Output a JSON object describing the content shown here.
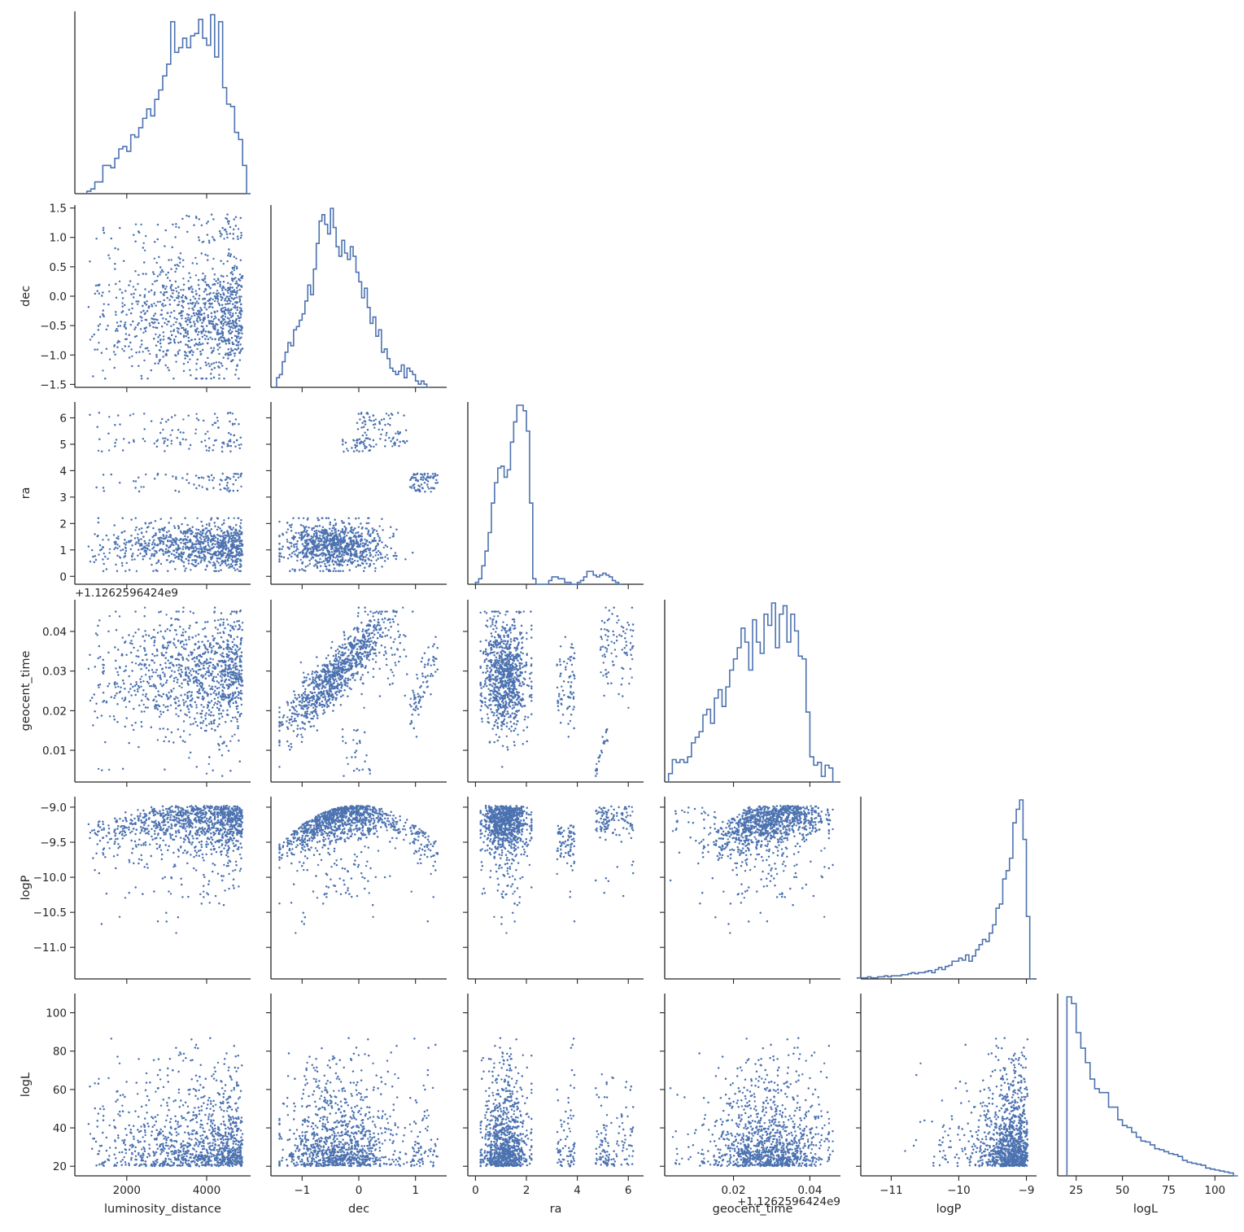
{
  "chart_data": {
    "type": "scatter",
    "title": "",
    "layout": "corner-pairplot",
    "color": "#4c72b0",
    "grid": false,
    "legend": "none",
    "variables": [
      {
        "key": "luminosity_distance",
        "label": "luminosity_distance",
        "ylabel": "",
        "lim": [
          700,
          5100
        ],
        "ticks": [
          2000,
          4000
        ],
        "tick_labels": [
          "2000",
          "4000"
        ],
        "offset": ""
      },
      {
        "key": "dec",
        "label": "dec",
        "ylabel": "dec",
        "lim": [
          -1.55,
          1.55
        ],
        "ticks": [
          -1.5,
          -1.0,
          -0.5,
          0.0,
          0.5,
          1.0,
          1.5
        ],
        "tick_labels": [
          "−1.5",
          "−1.0",
          "−0.5",
          "0.0",
          "0.5",
          "1.0",
          "1.5"
        ],
        "xticks": [
          -1,
          0,
          1
        ],
        "xtick_labels": [
          "−1",
          "0",
          "1"
        ],
        "offset": ""
      },
      {
        "key": "ra",
        "label": "ra",
        "ylabel": "ra",
        "lim": [
          -0.3,
          6.6
        ],
        "ticks": [
          0,
          1,
          2,
          3,
          4,
          5,
          6
        ],
        "tick_labels": [
          "0",
          "1",
          "2",
          "3",
          "4",
          "5",
          "6"
        ],
        "xticks": [
          0,
          2,
          4,
          6
        ],
        "xtick_labels": [
          "0",
          "2",
          "4",
          "6"
        ],
        "offset": ""
      },
      {
        "key": "geocent_time",
        "label": "geocent_time",
        "ylabel": "geocent_time",
        "lim": [
          0.002,
          0.048
        ],
        "ticks": [
          0.01,
          0.02,
          0.03,
          0.04
        ],
        "tick_labels": [
          "0.01",
          "0.02",
          "0.03",
          "0.04"
        ],
        "xticks": [
          0.02,
          0.04
        ],
        "xtick_labels": [
          "0.02",
          "0.04"
        ],
        "offset": "+1.1262596424e9"
      },
      {
        "key": "logP",
        "label": "logP",
        "ylabel": "logP",
        "lim": [
          -11.45,
          -8.85
        ],
        "ticks": [
          -11.0,
          -10.5,
          -10.0,
          -9.5,
          -9.0
        ],
        "tick_labels": [
          "−11.0",
          "−10.5",
          "−10.0",
          "−9.5",
          "−9.0"
        ],
        "xticks": [
          -11,
          -10,
          -9
        ],
        "xtick_labels": [
          "−11",
          "−10",
          "−9"
        ],
        "offset": ""
      },
      {
        "key": "logL",
        "label": "logL",
        "ylabel": "logL",
        "lim": [
          15,
          110
        ],
        "ticks": [
          20,
          40,
          60,
          80,
          100
        ],
        "tick_labels": [
          "20",
          "40",
          "60",
          "80",
          "100"
        ],
        "xticks": [
          25,
          50,
          75,
          100
        ],
        "xtick_labels": [
          "25",
          "50",
          "75",
          "100"
        ],
        "offset": ""
      }
    ],
    "diagonal_histograms": [
      {
        "var": "luminosity_distance",
        "edges_start": 1000,
        "bin_width": 100,
        "counts": [
          1,
          2,
          5,
          5,
          12,
          12,
          11,
          15,
          19,
          20,
          18,
          25,
          24,
          28,
          32,
          36,
          33,
          40,
          44,
          50,
          55,
          73,
          60,
          62,
          66,
          62,
          67,
          68,
          74,
          66,
          63,
          76,
          58,
          73,
          45,
          38,
          37,
          26,
          23,
          12,
          0
        ]
      },
      {
        "var": "dec",
        "edges_start": -1.45,
        "bin_width": 0.05,
        "counts": [
          3,
          4,
          8,
          11,
          14,
          13,
          18,
          19,
          21,
          23,
          27,
          32,
          29,
          37,
          45,
          52,
          54,
          51,
          48,
          56,
          50,
          44,
          41,
          46,
          42,
          40,
          44,
          41,
          36,
          33,
          28,
          31,
          25,
          20,
          22,
          16,
          18,
          11,
          12,
          9,
          6,
          5,
          4,
          5,
          7,
          3,
          6,
          5,
          4,
          2,
          1,
          2,
          1,
          0
        ]
      },
      {
        "var": "ra",
        "edges_start": 0.0,
        "bin_width": 0.125,
        "counts": [
          1,
          3,
          10,
          18,
          28,
          44,
          55,
          63,
          64,
          58,
          62,
          77,
          88,
          97,
          97,
          94,
          83,
          44,
          3,
          0,
          0,
          0,
          0,
          2,
          4,
          4,
          3,
          3,
          1,
          1,
          0,
          0,
          1,
          2,
          4,
          7,
          7,
          5,
          4,
          5,
          6,
          5,
          4,
          2,
          1,
          0
        ]
      },
      {
        "var": "geocent_time",
        "edges_start": 0.003,
        "bin_width": 0.001,
        "counts": [
          3,
          8,
          7,
          8,
          7,
          9,
          14,
          16,
          18,
          24,
          26,
          21,
          30,
          33,
          27,
          34,
          40,
          44,
          48,
          55,
          50,
          40,
          58,
          50,
          46,
          60,
          56,
          64,
          48,
          60,
          63,
          50,
          60,
          54,
          45,
          44,
          25,
          9,
          6,
          7,
          2,
          6,
          5,
          0
        ]
      },
      {
        "var": "logP",
        "edges_start": -11.5,
        "bin_width": 0.05,
        "counts": [
          1,
          1,
          1,
          2,
          1,
          1,
          2,
          2,
          3,
          2,
          3,
          3,
          3,
          4,
          4,
          5,
          6,
          5,
          6,
          6,
          7,
          8,
          6,
          9,
          11,
          9,
          12,
          13,
          17,
          17,
          20,
          18,
          23,
          17,
          22,
          28,
          33,
          38,
          36,
          44,
          52,
          68,
          72,
          96,
          104,
          116,
          150,
          163,
          172,
          134,
          60,
          0
        ]
      },
      {
        "var": "logL",
        "edges_start": 20,
        "bin_width": 2.5,
        "counts": [
          185,
          178,
          148,
          132,
          117,
          100,
          90,
          86,
          86,
          71,
          71,
          58,
          52,
          50,
          45,
          40,
          36,
          35,
          32,
          28,
          27,
          25,
          23,
          22,
          20,
          16,
          14,
          13,
          12,
          11,
          8,
          7,
          6,
          5,
          4,
          3,
          0
        ]
      }
    ],
    "scatter": {
      "n_points": 2000,
      "point_size": 2.4,
      "note": ""
    }
  }
}
